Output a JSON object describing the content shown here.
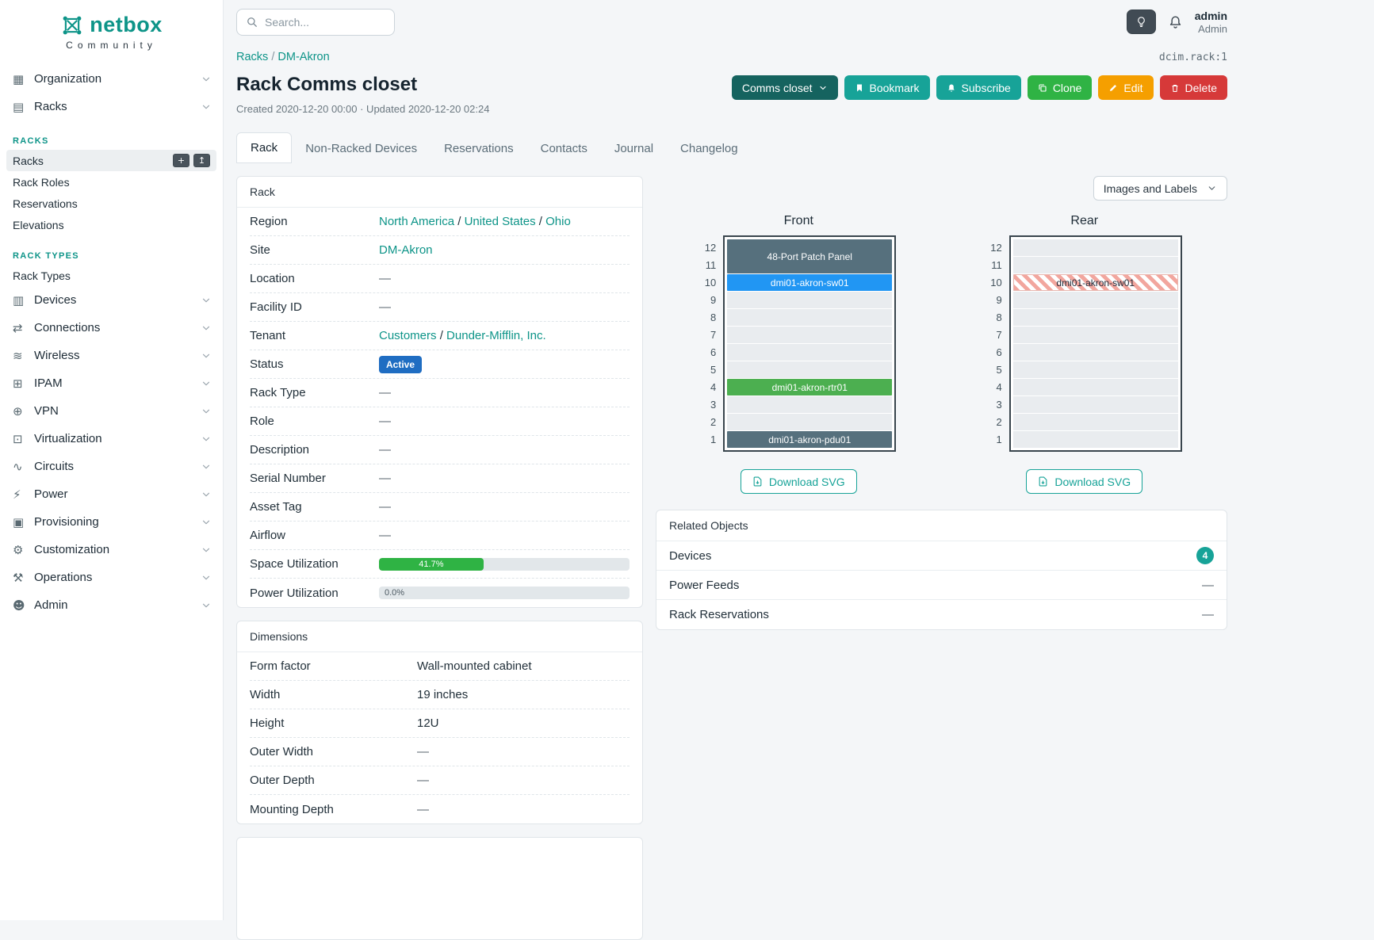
{
  "brand": {
    "logo_text": "netbox",
    "tagline": "Community"
  },
  "topbar": {
    "search_placeholder": "Search...",
    "user_name": "admin",
    "user_role": "Admin"
  },
  "sidebar": {
    "items": [
      {
        "kind": "top",
        "label": "Organization",
        "icon": "organization-icon",
        "glyph": "▦"
      },
      {
        "kind": "top",
        "label": "Racks",
        "icon": "racks-icon",
        "glyph": "▤"
      },
      {
        "kind": "section",
        "label": "RACKS"
      },
      {
        "kind": "sub",
        "label": "Racks",
        "active": true,
        "actions": [
          {
            "name": "add-button",
            "glyph": "+"
          },
          {
            "name": "import-button",
            "glyph": "↥"
          }
        ]
      },
      {
        "kind": "sub",
        "label": "Rack Roles"
      },
      {
        "kind": "sub",
        "label": "Reservations"
      },
      {
        "kind": "sub",
        "label": "Elevations"
      },
      {
        "kind": "section",
        "label": "RACK TYPES"
      },
      {
        "kind": "sub",
        "label": "Rack Types"
      },
      {
        "kind": "top",
        "label": "Devices",
        "icon": "devices-icon",
        "glyph": "▥"
      },
      {
        "kind": "top",
        "label": "Connections",
        "icon": "connections-icon",
        "glyph": "⇄"
      },
      {
        "kind": "top",
        "label": "Wireless",
        "icon": "wireless-icon",
        "glyph": "≋"
      },
      {
        "kind": "top",
        "label": "IPAM",
        "icon": "ipam-icon",
        "glyph": "⊞"
      },
      {
        "kind": "top",
        "label": "VPN",
        "icon": "vpn-icon",
        "glyph": "⊕"
      },
      {
        "kind": "top",
        "label": "Virtualization",
        "icon": "virtualization-icon",
        "glyph": "⊡"
      },
      {
        "kind": "top",
        "label": "Circuits",
        "icon": "circuits-icon",
        "glyph": "∿"
      },
      {
        "kind": "top",
        "label": "Power",
        "icon": "power-icon",
        "glyph": "⚡"
      },
      {
        "kind": "top",
        "label": "Provisioning",
        "icon": "provisioning-icon",
        "glyph": "▣"
      },
      {
        "kind": "top",
        "label": "Customization",
        "icon": "customization-icon",
        "glyph": "⚙"
      },
      {
        "kind": "top",
        "label": "Operations",
        "icon": "operations-icon",
        "glyph": "⚒"
      },
      {
        "kind": "top",
        "label": "Admin",
        "icon": "admin-icon",
        "glyph": "☻"
      }
    ]
  },
  "breadcrumb": {
    "items": [
      "Racks",
      "DM-Akron"
    ],
    "object_id": "dcim.rack:1"
  },
  "page": {
    "title": "Rack Comms closet",
    "meta": "Created 2020-12-20 00:00 · Updated 2020-12-20 02:24"
  },
  "actions": {
    "view_dropdown": "Comms closet",
    "bookmark": "Bookmark",
    "subscribe": "Subscribe",
    "clone": "Clone",
    "edit": "Edit",
    "delete": "Delete"
  },
  "tabs": [
    {
      "label": "Rack",
      "active": true
    },
    {
      "label": "Non-Racked Devices"
    },
    {
      "label": "Reservations"
    },
    {
      "label": "Contacts"
    },
    {
      "label": "Journal"
    },
    {
      "label": "Changelog"
    }
  ],
  "rack_panel": {
    "title": "Rack",
    "rows": [
      {
        "label": "Region",
        "type": "links",
        "parts": [
          "North America",
          "United States",
          "Ohio"
        ]
      },
      {
        "label": "Site",
        "type": "links",
        "parts": [
          "DM-Akron"
        ]
      },
      {
        "label": "Location",
        "type": "text",
        "value": "—"
      },
      {
        "label": "Facility ID",
        "type": "text",
        "value": "—"
      },
      {
        "label": "Tenant",
        "type": "links",
        "parts": [
          "Customers",
          "Dunder-Mifflin, Inc."
        ]
      },
      {
        "label": "Status",
        "type": "badge",
        "value": "Active"
      },
      {
        "label": "Rack Type",
        "type": "text",
        "value": "—"
      },
      {
        "label": "Role",
        "type": "text",
        "value": "—"
      },
      {
        "label": "Description",
        "type": "text",
        "value": "—"
      },
      {
        "label": "Serial Number",
        "type": "text",
        "value": "—"
      },
      {
        "label": "Asset Tag",
        "type": "text",
        "value": "—"
      },
      {
        "label": "Airflow",
        "type": "text",
        "value": "—"
      },
      {
        "label": "Space Utilization",
        "type": "progress",
        "value": "41.7%",
        "percent": 41.7
      },
      {
        "label": "Power Utilization",
        "type": "progress",
        "value": "0.0%",
        "percent": 0
      }
    ]
  },
  "dimensions_panel": {
    "title": "Dimensions",
    "rows": [
      {
        "label": "Form factor",
        "value": "Wall-mounted cabinet"
      },
      {
        "label": "Width",
        "value": "19 inches"
      },
      {
        "label": "Height",
        "value": "12U"
      },
      {
        "label": "Outer Width",
        "value": "—"
      },
      {
        "label": "Outer Depth",
        "value": "—"
      },
      {
        "label": "Mounting Depth",
        "value": "—"
      }
    ]
  },
  "elevations": {
    "toggle_label": "Images and Labels",
    "download_label": "Download SVG",
    "unit_count": 12,
    "views": [
      {
        "title": "Front",
        "devices": [
          {
            "label": "48-Port Patch Panel",
            "top_unit": 12,
            "units": 2,
            "bg": "#56707d",
            "fg": "#ffffff"
          },
          {
            "label": "dmi01-akron-sw01",
            "top_unit": 10,
            "units": 1,
            "bg": "#2196f3",
            "fg": "#ffffff"
          },
          {
            "label": "dmi01-akron-rtr01",
            "top_unit": 4,
            "units": 1,
            "bg": "#4caf50",
            "fg": "#ffffff"
          },
          {
            "label": "dmi01-akron-pdu01",
            "top_unit": 1,
            "units": 1,
            "bg": "#56707d",
            "fg": "#ffffff"
          }
        ]
      },
      {
        "title": "Rear",
        "devices": [
          {
            "label": "dmi01-akron-sw01",
            "top_unit": 10,
            "units": 1,
            "hatched": true,
            "fg": "#1f2937"
          }
        ]
      }
    ]
  },
  "related_objects": {
    "title": "Related Objects",
    "rows": [
      {
        "label": "Devices",
        "badge": "4"
      },
      {
        "label": "Power Feeds",
        "value": "—"
      },
      {
        "label": "Rack Reservations",
        "value": "—"
      }
    ]
  },
  "colors": {
    "accent_teal": "#17a398",
    "link_teal": "#0d9488",
    "dark_teal": "#15635f",
    "green": "#2fb344",
    "amber": "#f59f00",
    "red": "#d63939",
    "status_blue": "#1f6dc2"
  }
}
